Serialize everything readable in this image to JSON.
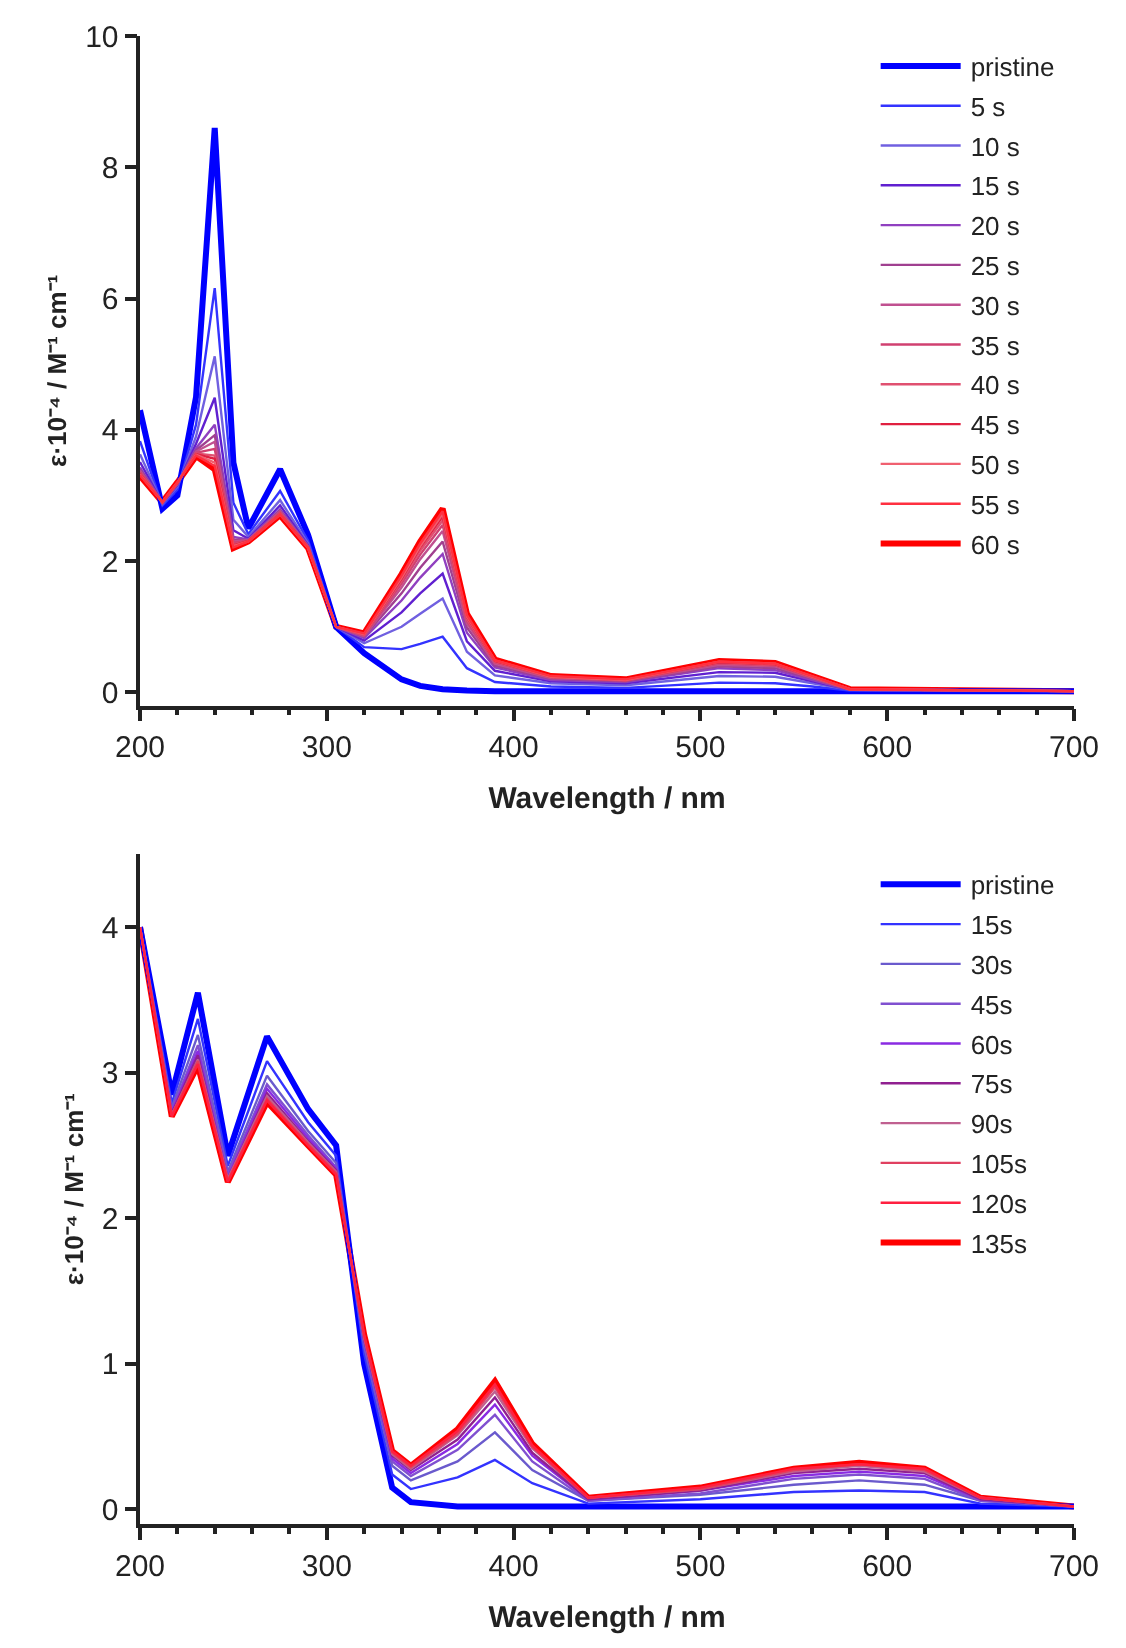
{
  "chart_data": [
    {
      "type": "line",
      "xlabel": "Wavelength / nm",
      "ylabel": "ε·10⁻⁴ / M⁻¹ cm⁻¹",
      "xlim": [
        200,
        700
      ],
      "xticks": [
        200,
        300,
        400,
        500,
        600,
        700
      ],
      "ylim": [
        -0.2,
        10
      ],
      "yticks": [
        0,
        2,
        4,
        6,
        8,
        10
      ],
      "legend": "top right",
      "marker": "none",
      "line_style": "solid",
      "x": [
        200,
        212,
        220,
        230,
        240,
        250,
        258,
        275,
        290,
        305,
        320,
        340,
        350,
        362,
        375,
        390,
        420,
        460,
        510,
        540,
        560,
        580,
        700
      ],
      "series": [
        {
          "name": "pristine",
          "color": "#0000ff",
          "values": [
            4.3,
            2.8,
            3.0,
            4.5,
            8.6,
            3.5,
            2.5,
            3.4,
            2.4,
            1.0,
            0.6,
            0.2,
            0.1,
            0.05,
            0.03,
            0.02,
            0.02,
            0.02,
            0.02,
            0.02,
            0.02,
            0.02,
            0.02
          ]
        },
        {
          "name": "5 s",
          "color": "#3333ff",
          "values": [
            3.83,
            2.85,
            3.09,
            4.08,
            6.16,
            2.89,
            2.41,
            3.07,
            2.31,
            1.0,
            0.69,
            0.66,
            0.74,
            0.85,
            0.37,
            0.16,
            0.09,
            0.07,
            0.15,
            0.14,
            0.09,
            0.03,
            0.02
          ]
        },
        {
          "name": "10 s",
          "color": "#7060e0",
          "values": [
            3.63,
            2.87,
            3.13,
            3.9,
            5.12,
            2.63,
            2.37,
            2.93,
            2.27,
            1.0,
            0.75,
            1.0,
            1.2,
            1.43,
            0.62,
            0.26,
            0.14,
            0.11,
            0.25,
            0.24,
            0.14,
            0.04,
            0.02
          ]
        },
        {
          "name": "15 s",
          "color": "#6020d0",
          "values": [
            3.51,
            2.88,
            3.16,
            3.79,
            4.49,
            2.47,
            2.34,
            2.85,
            2.24,
            1.0,
            0.79,
            1.22,
            1.51,
            1.81,
            0.78,
            0.33,
            0.17,
            0.14,
            0.31,
            0.3,
            0.17,
            0.04,
            0.02
          ]
        },
        {
          "name": "20 s",
          "color": "#9040c0",
          "values": [
            3.43,
            2.89,
            3.17,
            3.72,
            4.08,
            2.37,
            2.33,
            2.79,
            2.23,
            1.0,
            0.83,
            1.4,
            1.75,
            2.11,
            0.91,
            0.38,
            0.19,
            0.16,
            0.37,
            0.34,
            0.19,
            0.04,
            0.02
          ]
        },
        {
          "name": "25 s",
          "color": "#a04090",
          "values": [
            3.4,
            2.89,
            3.18,
            3.69,
            3.92,
            2.33,
            2.32,
            2.77,
            2.22,
            1.0,
            0.85,
            1.51,
            1.9,
            2.3,
            0.99,
            0.41,
            0.21,
            0.17,
            0.4,
            0.37,
            0.21,
            0.04,
            0.02
          ]
        },
        {
          "name": "30 s",
          "color": "#c05090",
          "values": [
            3.38,
            2.89,
            3.18,
            3.67,
            3.82,
            2.3,
            2.32,
            2.76,
            2.22,
            1.0,
            0.86,
            1.6,
            2.03,
            2.46,
            1.05,
            0.44,
            0.22,
            0.18,
            0.42,
            0.4,
            0.22,
            0.05,
            0.02
          ]
        },
        {
          "name": "35 s",
          "color": "#d04070",
          "values": [
            3.36,
            2.89,
            3.19,
            3.65,
            3.71,
            2.28,
            2.31,
            2.74,
            2.21,
            1.0,
            0.87,
            1.66,
            2.1,
            2.55,
            1.09,
            0.46,
            0.23,
            0.18,
            0.44,
            0.41,
            0.23,
            0.05,
            0.02
          ]
        },
        {
          "name": "40 s",
          "color": "#e05070",
          "values": [
            3.34,
            2.9,
            3.19,
            3.64,
            3.61,
            2.25,
            2.31,
            2.73,
            2.21,
            1.0,
            0.88,
            1.7,
            2.16,
            2.62,
            1.12,
            0.47,
            0.24,
            0.19,
            0.45,
            0.42,
            0.24,
            0.05,
            0.02
          ]
        },
        {
          "name": "45 s",
          "color": "#e02040",
          "values": [
            3.33,
            2.9,
            3.19,
            3.63,
            3.56,
            2.24,
            2.31,
            2.72,
            2.21,
            1.0,
            0.89,
            1.73,
            2.21,
            2.68,
            1.15,
            0.48,
            0.24,
            0.19,
            0.46,
            0.43,
            0.24,
            0.05,
            0.02
          ]
        },
        {
          "name": "50 s",
          "color": "#f06070",
          "values": [
            3.32,
            2.9,
            3.2,
            3.62,
            3.5,
            2.23,
            2.3,
            2.71,
            2.2,
            1.0,
            0.89,
            1.75,
            2.23,
            2.72,
            1.16,
            0.49,
            0.24,
            0.19,
            0.47,
            0.44,
            0.24,
            0.05,
            0.02
          ]
        },
        {
          "name": "55 s",
          "color": "#ff3040",
          "values": [
            3.31,
            2.9,
            3.2,
            3.61,
            3.45,
            2.21,
            2.3,
            2.71,
            2.2,
            1.0,
            0.9,
            1.78,
            2.27,
            2.76,
            1.18,
            0.49,
            0.25,
            0.2,
            0.47,
            0.44,
            0.25,
            0.05,
            0.02
          ]
        },
        {
          "name": "60 s",
          "color": "#ff0000",
          "values": [
            3.3,
            2.9,
            3.2,
            3.6,
            3.4,
            2.2,
            2.3,
            2.7,
            2.2,
            1.0,
            0.9,
            1.8,
            2.3,
            2.8,
            1.2,
            0.5,
            0.25,
            0.2,
            0.48,
            0.45,
            0.25,
            0.05,
            0.02
          ]
        }
      ]
    },
    {
      "type": "line",
      "xlabel": "Wavelength / nm",
      "ylabel": "ε·10⁻⁴ / M⁻¹ cm⁻¹",
      "xlim": [
        200,
        700
      ],
      "xticks": [
        200,
        300,
        400,
        500,
        600,
        700
      ],
      "ylim": [
        -0.1,
        4.5
      ],
      "yticks": [
        0,
        1,
        2,
        3,
        4
      ],
      "legend": "top right",
      "marker": "none",
      "line_style": "solid",
      "x": [
        200,
        217,
        231,
        247,
        268,
        290,
        305,
        320,
        335,
        345,
        370,
        390,
        410,
        440,
        500,
        550,
        585,
        620,
        650,
        700
      ],
      "series": [
        {
          "name": "pristine",
          "color": "#0000ff",
          "values": [
            4.0,
            2.85,
            3.55,
            2.43,
            3.25,
            2.75,
            2.5,
            1.0,
            0.15,
            0.05,
            0.02,
            0.02,
            0.02,
            0.02,
            0.02,
            0.02,
            0.02,
            0.02,
            0.02,
            0.02
          ]
        },
        {
          "name": "15s",
          "color": "#3333ff",
          "values": [
            4.0,
            2.79,
            3.37,
            2.36,
            3.08,
            2.66,
            2.43,
            1.07,
            0.24,
            0.14,
            0.22,
            0.34,
            0.18,
            0.04,
            0.07,
            0.12,
            0.13,
            0.12,
            0.04,
            0.02
          ]
        },
        {
          "name": "30s",
          "color": "#6a5acd",
          "values": [
            4.0,
            2.76,
            3.26,
            2.32,
            2.98,
            2.6,
            2.38,
            1.12,
            0.3,
            0.2,
            0.33,
            0.53,
            0.27,
            0.06,
            0.1,
            0.17,
            0.2,
            0.17,
            0.06,
            0.02
          ]
        },
        {
          "name": "45s",
          "color": "#8050d0",
          "values": [
            4.0,
            2.74,
            3.19,
            2.3,
            2.92,
            2.57,
            2.35,
            1.15,
            0.33,
            0.23,
            0.41,
            0.65,
            0.33,
            0.06,
            0.11,
            0.21,
            0.24,
            0.21,
            0.06,
            0.02
          ]
        },
        {
          "name": "60s",
          "color": "#8a2be2",
          "values": [
            4.0,
            2.73,
            3.15,
            2.28,
            2.89,
            2.55,
            2.34,
            1.16,
            0.35,
            0.25,
            0.45,
            0.72,
            0.37,
            0.07,
            0.13,
            0.23,
            0.26,
            0.23,
            0.07,
            0.02
          ]
        },
        {
          "name": "75s",
          "color": "#902090",
          "values": [
            4.0,
            2.72,
            3.12,
            2.27,
            2.86,
            2.53,
            2.33,
            1.17,
            0.37,
            0.27,
            0.48,
            0.77,
            0.39,
            0.07,
            0.13,
            0.25,
            0.28,
            0.25,
            0.07,
            0.02
          ]
        },
        {
          "name": "90s",
          "color": "#c06090",
          "values": [
            4.0,
            2.71,
            3.09,
            2.27,
            2.84,
            2.52,
            2.32,
            1.18,
            0.38,
            0.28,
            0.51,
            0.81,
            0.42,
            0.08,
            0.14,
            0.26,
            0.3,
            0.26,
            0.08,
            0.02
          ]
        },
        {
          "name": "105s",
          "color": "#e04060",
          "values": [
            4.0,
            2.71,
            3.08,
            2.26,
            2.82,
            2.51,
            2.31,
            1.19,
            0.39,
            0.29,
            0.52,
            0.84,
            0.43,
            0.08,
            0.14,
            0.27,
            0.31,
            0.27,
            0.08,
            0.02
          ]
        },
        {
          "name": "120s",
          "color": "#ff2040",
          "values": [
            4.0,
            2.7,
            3.06,
            2.25,
            2.81,
            2.5,
            2.3,
            1.2,
            0.4,
            0.3,
            0.54,
            0.86,
            0.44,
            0.08,
            0.15,
            0.28,
            0.31,
            0.28,
            0.08,
            0.02
          ]
        },
        {
          "name": "135s",
          "color": "#ff0000",
          "values": [
            4.0,
            2.7,
            3.05,
            2.25,
            2.8,
            2.5,
            2.3,
            1.2,
            0.4,
            0.3,
            0.55,
            0.88,
            0.45,
            0.08,
            0.15,
            0.28,
            0.32,
            0.28,
            0.08,
            0.02
          ]
        }
      ]
    }
  ]
}
